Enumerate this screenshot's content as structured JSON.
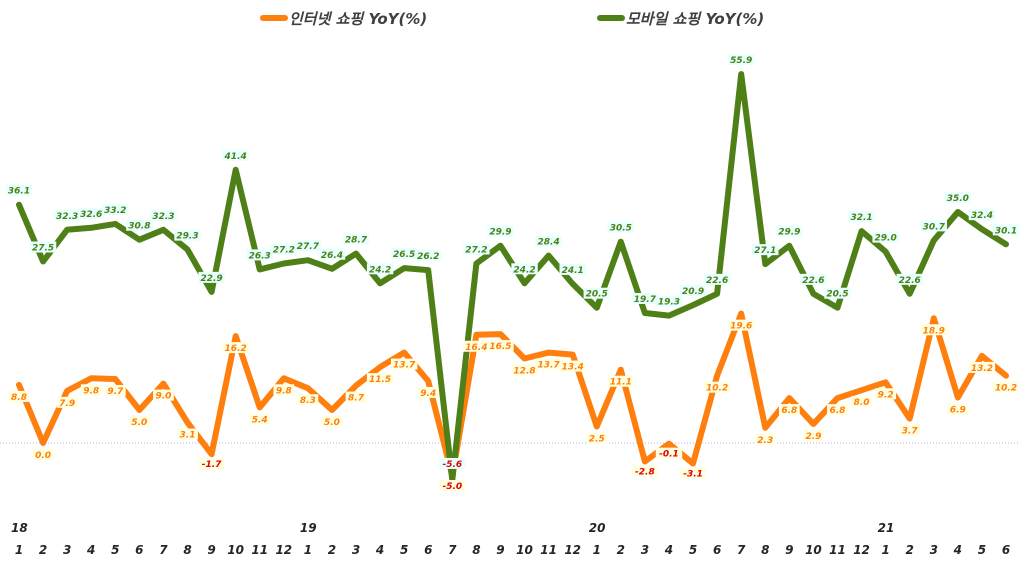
{
  "chart_data": {
    "type": "line",
    "title": "",
    "xlabel": "",
    "ylabel": "",
    "grid": false,
    "legend_placement": "top",
    "x_years": {
      "0": "18",
      "12": "19",
      "24": "20",
      "36": "21"
    },
    "categories": [
      "1",
      "2",
      "3",
      "4",
      "5",
      "6",
      "7",
      "8",
      "9",
      "10",
      "11",
      "12",
      "1",
      "2",
      "3",
      "4",
      "5",
      "6",
      "7",
      "8",
      "9",
      "10",
      "11",
      "12",
      "1",
      "2",
      "3",
      "4",
      "5",
      "6",
      "7",
      "8",
      "9",
      "10",
      "11",
      "12",
      "1",
      "2",
      "3",
      "4",
      "5",
      "6"
    ],
    "ylim": [
      -9,
      62
    ],
    "series": [
      {
        "name": "인터넷 쇼핑 YoY(%)",
        "color": "#ff7f0e",
        "label_bg": "#ffffe0",
        "values": [
          8.8,
          0.0,
          7.9,
          9.8,
          9.7,
          5.0,
          9.0,
          3.1,
          -1.7,
          16.2,
          5.4,
          9.8,
          8.3,
          5.0,
          8.7,
          11.5,
          13.7,
          9.4,
          -5.0,
          16.4,
          16.5,
          12.8,
          13.7,
          13.4,
          2.5,
          11.1,
          -2.8,
          -0.1,
          -3.1,
          10.2,
          19.6,
          2.3,
          6.8,
          2.9,
          6.8,
          8.0,
          9.2,
          3.7,
          18.9,
          6.9,
          13.2,
          10.2
        ]
      },
      {
        "name": "모바일 쇼핑 YoY(%)",
        "color": "#4f7f17",
        "label_bg": "#e6ffff",
        "values": [
          36.1,
          27.5,
          32.3,
          32.6,
          33.2,
          30.8,
          32.3,
          29.3,
          22.9,
          41.4,
          26.3,
          27.2,
          27.7,
          26.4,
          28.7,
          24.2,
          26.5,
          26.2,
          -5.6,
          27.2,
          29.9,
          24.2,
          28.4,
          24.1,
          20.5,
          30.5,
          19.7,
          19.3,
          20.9,
          22.6,
          55.9,
          27.1,
          29.9,
          22.6,
          20.5,
          32.1,
          29.0,
          22.6,
          30.7,
          35.0,
          32.4,
          30.1
        ]
      }
    ],
    "negative_label_color": "#e00000",
    "zero_line_color": "#b4a7e6"
  }
}
